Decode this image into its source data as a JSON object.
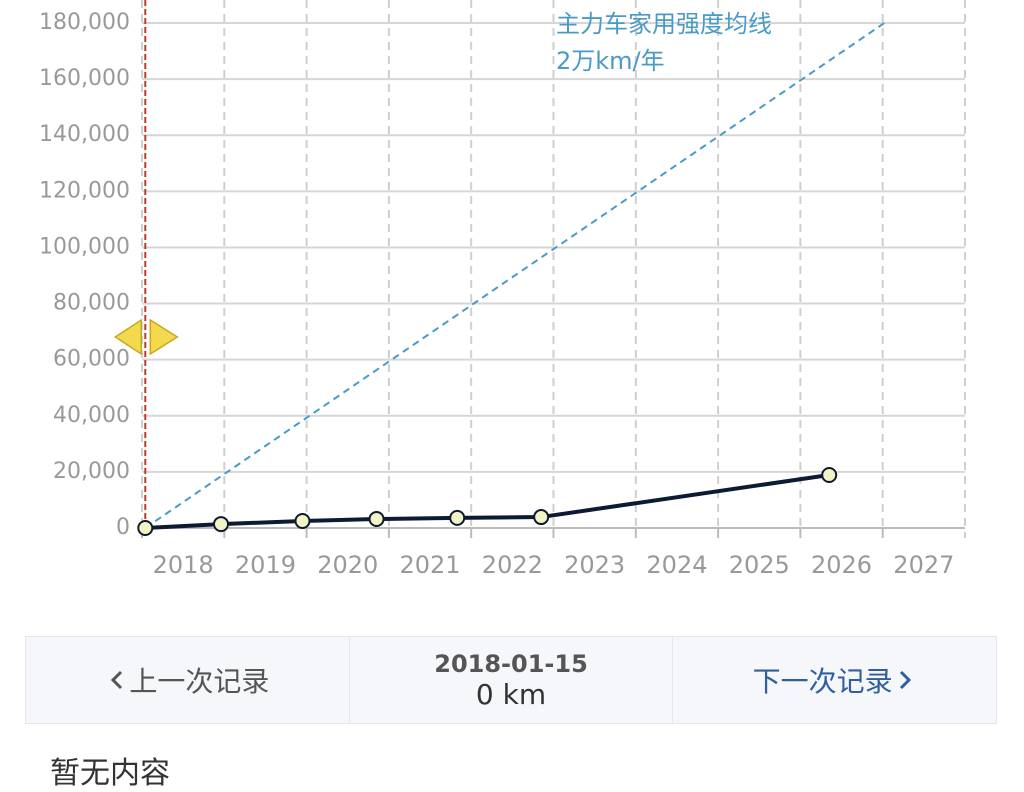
{
  "chart_data": {
    "type": "line",
    "xlim": [
      2018,
      2028
    ],
    "xticks": [
      2018,
      2019,
      2020,
      2021,
      2022,
      2023,
      2024,
      2025,
      2026,
      2027
    ],
    "ylim": [
      0,
      180000
    ],
    "yticks": [
      0,
      {
        "value": 20000,
        "label": "20,000"
      },
      {
        "value": 40000,
        "label": "40,000"
      },
      {
        "value": 60000,
        "label": "60,000"
      },
      {
        "value": 80000,
        "label": "80,000"
      },
      {
        "value": 100000,
        "label": "100,000"
      },
      {
        "value": 120000,
        "label": "120,000"
      },
      {
        "value": 140000,
        "label": "140,000"
      },
      {
        "value": 160000,
        "label": "160,000"
      },
      {
        "value": 180000,
        "label": "180,000"
      }
    ],
    "grid": true,
    "series": [
      {
        "name": "主力车家用强度均线",
        "annotation": "2万km/年",
        "color": "#4a9ac8",
        "dashed": true,
        "x": [
          2018.04,
          2027.02
        ],
        "values": [
          0,
          180000
        ]
      },
      {
        "color": "#0d1a33",
        "marker_fill": "#f3f3c4",
        "x": [
          2018.04,
          2018.96,
          2019.95,
          2020.85,
          2021.83,
          2022.85,
          2026.35
        ],
        "values": [
          0,
          1400,
          2500,
          3200,
          3600,
          3900,
          18900
        ]
      }
    ]
  },
  "nav": {
    "prev": "上一次记录",
    "date": "2018-01-15",
    "odometer": "0 km",
    "next": "下一次记录"
  },
  "content": {
    "empty_text": "暂无内容"
  }
}
